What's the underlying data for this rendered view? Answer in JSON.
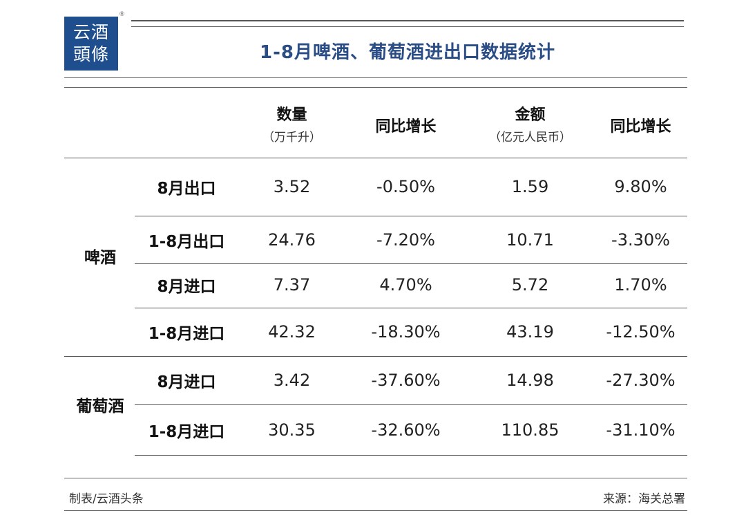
{
  "logo": {
    "line1": "云酒",
    "line2": "頭條",
    "reg": "®"
  },
  "title": "1-8月啤酒、葡萄酒进出口数据统计",
  "columns": [
    {
      "label": "数量",
      "sub": "（万千升）"
    },
    {
      "label": "同比增长",
      "sub": ""
    },
    {
      "label": "金额",
      "sub": "（亿元人民币）"
    },
    {
      "label": "同比增长",
      "sub": ""
    }
  ],
  "groups": [
    {
      "name": "啤酒"
    },
    {
      "name": "葡萄酒"
    }
  ],
  "rows": [
    {
      "label": "8月出口",
      "qty": "3.52",
      "qty_yoy": "-0.50%",
      "amount": "1.59",
      "amount_yoy": "9.80%"
    },
    {
      "label": "1-8月出口",
      "qty": "24.76",
      "qty_yoy": "-7.20%",
      "amount": "10.71",
      "amount_yoy": "-3.30%"
    },
    {
      "label": "8月进口",
      "qty": "7.37",
      "qty_yoy": "4.70%",
      "amount": "5.72",
      "amount_yoy": "1.70%"
    },
    {
      "label": "1-8月进口",
      "qty": "42.32",
      "qty_yoy": "-18.30%",
      "amount": "43.19",
      "amount_yoy": "-12.50%"
    },
    {
      "label": "8月进口",
      "qty": "3.42",
      "qty_yoy": "-37.60%",
      "amount": "14.98",
      "amount_yoy": "-27.30%"
    },
    {
      "label": "1-8月进口",
      "qty": "30.35",
      "qty_yoy": "-32.60%",
      "amount": "110.85",
      "amount_yoy": "-31.10%"
    }
  ],
  "footer": {
    "left": "制表/云酒头条",
    "right": "来源：海关总署"
  },
  "colors": {
    "brand": "#1f4e8f",
    "title": "#2a4d85"
  }
}
